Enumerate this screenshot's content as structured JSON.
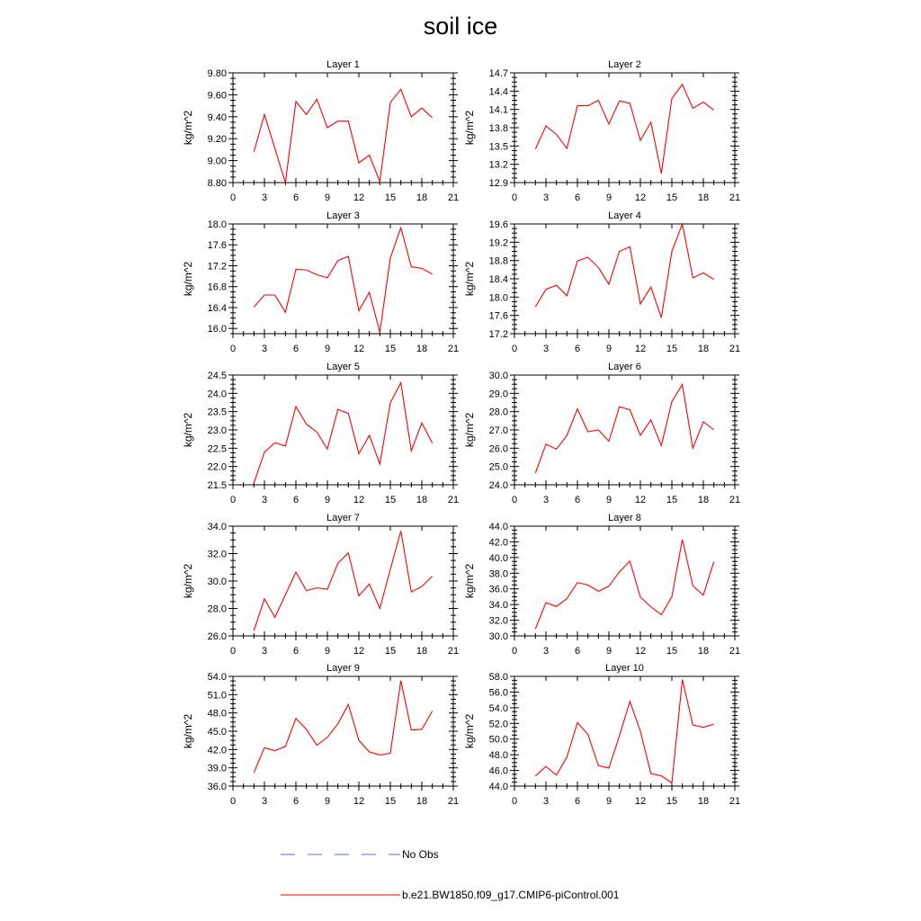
{
  "figure": {
    "title": "soil ice"
  },
  "legend": {
    "obs_label": "No Obs",
    "obs_color": "#5a6fd1",
    "model_label": "b.e21.BW1850.f09_g17.CMIP6-piControl.001",
    "model_color": "#ff0000"
  },
  "chart_data": [
    {
      "type": "line",
      "title": "Layer 1",
      "ylabel": "kg/m^2",
      "xlim": [
        0,
        21
      ],
      "xticks": [
        0,
        3,
        6,
        9,
        12,
        15,
        18,
        21
      ],
      "ylim": [
        8.8,
        9.8
      ],
      "yticks": [
        "8.80",
        "9.00",
        "9.20",
        "9.40",
        "9.60",
        "9.80"
      ],
      "series": [
        {
          "name": "b.e21.BW1850.f09_g17.CMIP6-piControl.001",
          "x": [
            2,
            3,
            4,
            5,
            6,
            7,
            8,
            9,
            10,
            11,
            12,
            13,
            14,
            15,
            16,
            17,
            18,
            19
          ],
          "values": [
            9.08,
            9.42,
            9.11,
            8.8,
            9.54,
            9.42,
            9.56,
            9.3,
            9.36,
            9.36,
            8.98,
            9.05,
            8.81,
            9.53,
            9.65,
            9.4,
            9.48,
            9.39
          ]
        }
      ]
    },
    {
      "type": "line",
      "title": "Layer 2",
      "ylabel": "kg/m^2",
      "xlim": [
        0,
        21
      ],
      "xticks": [
        0,
        3,
        6,
        9,
        12,
        15,
        18,
        21
      ],
      "ylim": [
        12.9,
        14.7
      ],
      "yticks": [
        "12.9",
        "13.2",
        "13.5",
        "13.8",
        "14.1",
        "14.4",
        "14.7"
      ],
      "series": [
        {
          "name": "b.e21.BW1850.f09_g17.CMIP6-piControl.001",
          "x": [
            2,
            3,
            4,
            5,
            6,
            7,
            8,
            9,
            10,
            11,
            12,
            13,
            14,
            15,
            16,
            17,
            18,
            19
          ],
          "values": [
            13.45,
            13.83,
            13.69,
            13.46,
            14.16,
            14.16,
            14.25,
            13.86,
            14.24,
            14.2,
            13.59,
            13.89,
            13.05,
            14.28,
            14.51,
            14.12,
            14.22,
            14.09
          ]
        }
      ]
    },
    {
      "type": "line",
      "title": "Layer 3",
      "ylabel": "kg/m^2",
      "xlim": [
        0,
        21
      ],
      "xticks": [
        0,
        3,
        6,
        9,
        12,
        15,
        18,
        21
      ],
      "ylim": [
        15.9,
        18.0
      ],
      "yticks": [
        "16.0",
        "16.4",
        "16.8",
        "17.2",
        "17.6",
        "18.0"
      ],
      "series": [
        {
          "name": "b.e21.BW1850.f09_g17.CMIP6-piControl.001",
          "x": [
            2,
            3,
            4,
            5,
            6,
            7,
            8,
            9,
            10,
            11,
            12,
            13,
            14,
            15,
            16,
            17,
            18,
            19
          ],
          "values": [
            16.41,
            16.64,
            16.64,
            16.31,
            17.13,
            17.12,
            17.03,
            16.97,
            17.3,
            17.38,
            16.34,
            16.69,
            15.93,
            17.35,
            17.93,
            17.18,
            17.15,
            17.04
          ]
        }
      ]
    },
    {
      "type": "line",
      "title": "Layer 4",
      "ylabel": "kg/m^2",
      "xlim": [
        0,
        21
      ],
      "xticks": [
        0,
        3,
        6,
        9,
        12,
        15,
        18,
        21
      ],
      "ylim": [
        17.2,
        19.6
      ],
      "yticks": [
        "17.2",
        "17.6",
        "18.0",
        "18.4",
        "18.8",
        "19.2",
        "19.6"
      ],
      "series": [
        {
          "name": "b.e21.BW1850.f09_g17.CMIP6-piControl.001",
          "x": [
            2,
            3,
            4,
            5,
            6,
            7,
            8,
            9,
            10,
            11,
            12,
            13,
            14,
            15,
            16,
            17,
            18,
            19
          ],
          "values": [
            17.79,
            18.17,
            18.26,
            18.03,
            18.79,
            18.87,
            18.65,
            18.28,
            19.0,
            19.1,
            17.85,
            18.22,
            17.55,
            19.0,
            19.6,
            18.42,
            18.53,
            18.39
          ]
        }
      ]
    },
    {
      "type": "line",
      "title": "Layer 5",
      "ylabel": "kg/m^2",
      "xlim": [
        0,
        21
      ],
      "xticks": [
        0,
        3,
        6,
        9,
        12,
        15,
        18,
        21
      ],
      "ylim": [
        21.5,
        24.5
      ],
      "yticks": [
        "21.5",
        "22.0",
        "22.5",
        "23.0",
        "23.5",
        "24.0",
        "24.5"
      ],
      "series": [
        {
          "name": "b.e21.BW1850.f09_g17.CMIP6-piControl.001",
          "x": [
            2,
            3,
            4,
            5,
            6,
            7,
            8,
            9,
            10,
            11,
            12,
            13,
            14,
            15,
            16,
            17,
            18,
            19
          ],
          "values": [
            21.55,
            22.39,
            22.65,
            22.56,
            23.64,
            23.16,
            22.94,
            22.48,
            23.56,
            23.45,
            22.35,
            22.85,
            22.07,
            23.74,
            24.29,
            22.43,
            23.19,
            22.64
          ]
        }
      ]
    },
    {
      "type": "line",
      "title": "Layer 6",
      "ylabel": "kg/m^2",
      "xlim": [
        0,
        21
      ],
      "xticks": [
        0,
        3,
        6,
        9,
        12,
        15,
        18,
        21
      ],
      "ylim": [
        24.0,
        30.0
      ],
      "yticks": [
        "24.0",
        "25.0",
        "26.0",
        "27.0",
        "28.0",
        "29.0",
        "30.0"
      ],
      "series": [
        {
          "name": "b.e21.BW1850.f09_g17.CMIP6-piControl.001",
          "x": [
            2,
            3,
            4,
            5,
            6,
            7,
            8,
            9,
            10,
            11,
            12,
            13,
            14,
            15,
            16,
            17,
            18,
            19
          ],
          "values": [
            24.65,
            26.22,
            25.95,
            26.7,
            28.15,
            26.9,
            27.0,
            26.38,
            28.27,
            28.1,
            26.7,
            27.55,
            26.15,
            28.55,
            29.48,
            26.0,
            27.45,
            27.0
          ]
        }
      ]
    },
    {
      "type": "line",
      "title": "Layer 7",
      "ylabel": "kg/m^2",
      "xlim": [
        0,
        21
      ],
      "xticks": [
        0,
        3,
        6,
        9,
        12,
        15,
        18,
        21
      ],
      "ylim": [
        26.0,
        34.0
      ],
      "yticks": [
        "26.0",
        "28.0",
        "30.0",
        "32.0",
        "34.0"
      ],
      "series": [
        {
          "name": "b.e21.BW1850.f09_g17.CMIP6-piControl.001",
          "x": [
            2,
            3,
            4,
            5,
            6,
            7,
            8,
            9,
            10,
            11,
            12,
            13,
            14,
            15,
            16,
            17,
            18,
            19
          ],
          "values": [
            26.38,
            28.7,
            27.35,
            29.0,
            30.65,
            29.3,
            29.5,
            29.4,
            31.3,
            32.05,
            28.92,
            29.78,
            28.0,
            30.85,
            33.65,
            29.2,
            29.6,
            30.35
          ]
        }
      ]
    },
    {
      "type": "line",
      "title": "Layer 8",
      "ylabel": "kg/m^2",
      "xlim": [
        0,
        21
      ],
      "xticks": [
        0,
        3,
        6,
        9,
        12,
        15,
        18,
        21
      ],
      "ylim": [
        30.0,
        44.0
      ],
      "yticks": [
        "30.0",
        "32.0",
        "34.0",
        "36.0",
        "38.0",
        "40.0",
        "42.0",
        "44.0"
      ],
      "series": [
        {
          "name": "b.e21.BW1850.f09_g17.CMIP6-piControl.001",
          "x": [
            2,
            3,
            4,
            5,
            6,
            7,
            8,
            9,
            10,
            11,
            12,
            13,
            14,
            15,
            16,
            17,
            18,
            19
          ],
          "values": [
            30.9,
            34.25,
            33.75,
            34.75,
            36.8,
            36.5,
            35.7,
            36.35,
            38.15,
            39.55,
            34.95,
            33.7,
            32.7,
            35.0,
            42.3,
            36.4,
            35.2,
            39.45
          ]
        }
      ]
    },
    {
      "type": "line",
      "title": "Layer 9",
      "ylabel": "kg/m^2",
      "xlim": [
        0,
        21
      ],
      "xticks": [
        0,
        3,
        6,
        9,
        12,
        15,
        18,
        21
      ],
      "ylim": [
        36.0,
        54.0
      ],
      "yticks": [
        "36.0",
        "39.0",
        "42.0",
        "45.0",
        "48.0",
        "51.0",
        "54.0"
      ],
      "series": [
        {
          "name": "b.e21.BW1850.f09_g17.CMIP6-piControl.001",
          "x": [
            2,
            3,
            4,
            5,
            6,
            7,
            8,
            9,
            10,
            11,
            12,
            13,
            14,
            15,
            16,
            17,
            18,
            19
          ],
          "values": [
            38.2,
            42.3,
            41.8,
            42.5,
            47.1,
            45.3,
            42.7,
            44.0,
            46.2,
            49.4,
            43.5,
            41.6,
            41.1,
            41.4,
            53.3,
            45.2,
            45.3,
            48.3
          ]
        }
      ]
    },
    {
      "type": "line",
      "title": "Layer 10",
      "ylabel": "kg/m^2",
      "xlim": [
        0,
        21
      ],
      "xticks": [
        0,
        3,
        6,
        9,
        12,
        15,
        18,
        21
      ],
      "ylim": [
        44.0,
        58.0
      ],
      "yticks": [
        "44.0",
        "46.0",
        "48.0",
        "50.0",
        "52.0",
        "54.0",
        "56.0",
        "58.0"
      ],
      "series": [
        {
          "name": "b.e21.BW1850.f09_g17.CMIP6-piControl.001",
          "x": [
            2,
            3,
            4,
            5,
            6,
            7,
            8,
            9,
            10,
            11,
            12,
            13,
            14,
            15,
            16,
            17,
            18,
            19
          ],
          "values": [
            45.3,
            46.5,
            45.4,
            47.7,
            52.1,
            50.6,
            46.6,
            46.3,
            50.4,
            54.8,
            51.0,
            45.6,
            45.3,
            44.4,
            57.6,
            51.8,
            51.5,
            51.9
          ]
        }
      ]
    }
  ]
}
